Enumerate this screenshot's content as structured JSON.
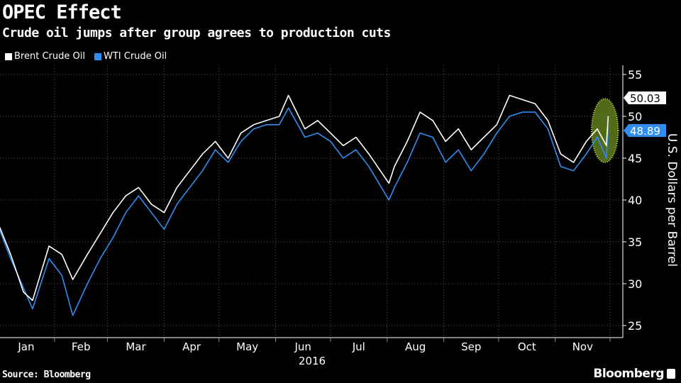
{
  "title": "OPEC Effect",
  "subtitle": "Crude oil jumps after group agrees to production cuts",
  "source": "Source: Bloomberg",
  "brand": "Bloomberg",
  "chart_data": {
    "type": "line",
    "title": "OPEC Effect",
    "subtitle": "Crude oil jumps after group agrees to production cuts",
    "ylabel": "U.S. Dollars per Barrel",
    "xlabel": "2016",
    "ylim": [
      25,
      55
    ],
    "yticks": [
      25,
      30,
      35,
      40,
      45,
      50,
      55
    ],
    "xlim": [
      "2016-01-01",
      "2016-12-08"
    ],
    "xtick_labels": [
      "Jan",
      "Feb",
      "Mar",
      "Apr",
      "May",
      "Jun",
      "Jul",
      "Aug",
      "Sep",
      "Oct",
      "Nov"
    ],
    "grid": true,
    "legend_position": "top-left",
    "highlight": {
      "start": "2016-11-24",
      "end": "2016-11-30",
      "color": "#6b8e23"
    },
    "x": [
      "2016-01-01",
      "2016-01-08",
      "2016-01-15",
      "2016-01-20",
      "2016-01-29",
      "2016-02-05",
      "2016-02-11",
      "2016-02-19",
      "2016-02-26",
      "2016-03-04",
      "2016-03-11",
      "2016-03-18",
      "2016-03-25",
      "2016-04-01",
      "2016-04-08",
      "2016-04-15",
      "2016-04-22",
      "2016-04-29",
      "2016-05-06",
      "2016-05-13",
      "2016-05-20",
      "2016-05-27",
      "2016-06-03",
      "2016-06-08",
      "2016-06-17",
      "2016-06-24",
      "2016-07-01",
      "2016-07-08",
      "2016-07-15",
      "2016-07-22",
      "2016-08-02",
      "2016-08-05",
      "2016-08-12",
      "2016-08-19",
      "2016-08-26",
      "2016-09-02",
      "2016-09-09",
      "2016-09-16",
      "2016-09-23",
      "2016-09-30",
      "2016-10-07",
      "2016-10-14",
      "2016-10-21",
      "2016-10-28",
      "2016-11-04",
      "2016-11-11",
      "2016-11-18",
      "2016-11-24",
      "2016-11-29",
      "2016-11-30"
    ],
    "series": [
      {
        "name": "Brent Crude Oil",
        "color": "#ffffff",
        "last_label": "50.03",
        "values": [
          37.3,
          33.5,
          29.0,
          28.0,
          34.5,
          33.5,
          30.5,
          33.5,
          36.0,
          38.5,
          40.5,
          41.5,
          39.5,
          38.5,
          41.5,
          43.5,
          45.5,
          47.0,
          45.0,
          48.0,
          49.0,
          49.5,
          50.0,
          52.5,
          48.5,
          49.5,
          48.0,
          46.5,
          47.5,
          45.5,
          42.0,
          44.0,
          47.0,
          50.5,
          49.5,
          47.0,
          48.5,
          46.0,
          47.5,
          49.0,
          52.5,
          52.0,
          51.5,
          49.5,
          45.5,
          44.5,
          47.0,
          48.5,
          46.5,
          50.03
        ]
      },
      {
        "name": "WTI Crude Oil",
        "color": "#2f8ef0",
        "last_label": "48.89",
        "values": [
          37.0,
          33.0,
          29.5,
          27.0,
          33.0,
          31.0,
          26.2,
          30.0,
          33.0,
          35.5,
          38.5,
          40.5,
          38.5,
          36.5,
          39.5,
          41.5,
          43.5,
          46.0,
          44.5,
          47.0,
          48.5,
          49.0,
          49.0,
          51.0,
          47.5,
          48.0,
          47.0,
          45.0,
          46.0,
          44.0,
          40.0,
          41.5,
          44.5,
          48.0,
          47.5,
          44.5,
          46.0,
          43.5,
          45.5,
          48.0,
          50.0,
          50.5,
          50.5,
          48.5,
          44.0,
          43.5,
          45.5,
          47.5,
          45.0,
          48.89
        ]
      }
    ]
  }
}
